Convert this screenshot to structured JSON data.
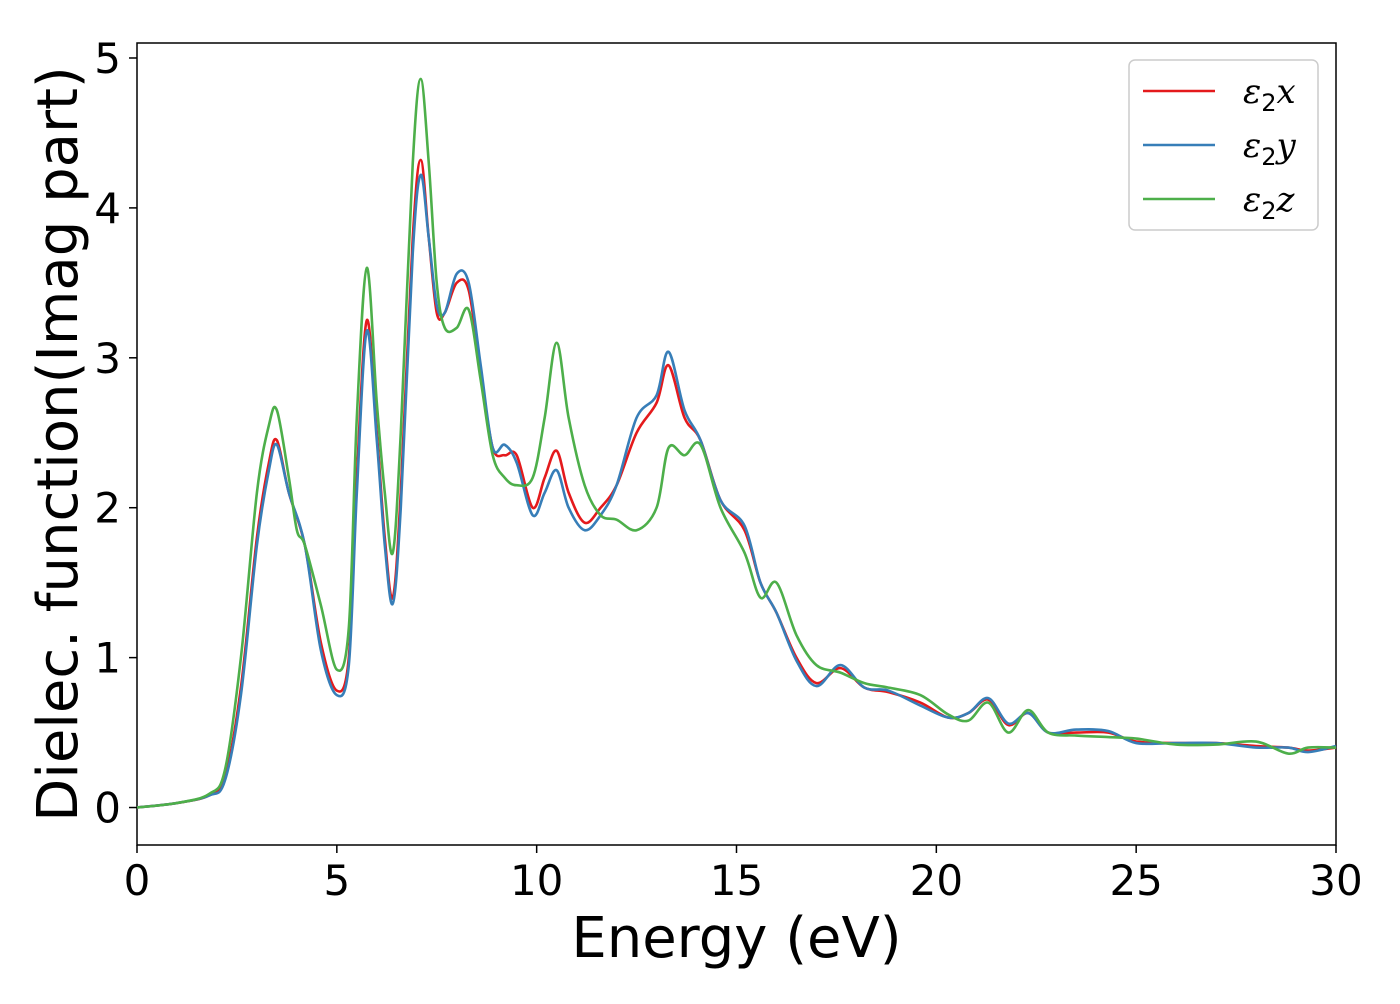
{
  "chart_data": {
    "type": "line",
    "xlabel": "Energy (eV)",
    "ylabel": "Dielec. function(Imag part)",
    "xlim": [
      0,
      30
    ],
    "ylim": [
      -0.25,
      5.1
    ],
    "xticks": [
      0,
      5,
      10,
      15,
      20,
      25,
      30
    ],
    "yticks": [
      0,
      1,
      2,
      3,
      4,
      5
    ],
    "grid": false,
    "legend_position": "top-right",
    "series": [
      {
        "name": "ε2x",
        "legend": {
          "base": "ε",
          "sub": "2",
          "tail": "x"
        },
        "color": "#e41a1c",
        "x": [
          0,
          1,
          1.8,
          2.2,
          2.6,
          3.0,
          3.3,
          3.5,
          3.8,
          4.2,
          4.6,
          5.0,
          5.3,
          5.5,
          5.75,
          6.0,
          6.2,
          6.4,
          6.6,
          6.9,
          7.1,
          7.3,
          7.5,
          7.7,
          8.0,
          8.3,
          8.6,
          8.9,
          9.2,
          9.5,
          9.9,
          10.2,
          10.5,
          10.8,
          11.2,
          11.6,
          12.0,
          12.5,
          13.0,
          13.3,
          13.7,
          14.1,
          14.6,
          15.2,
          15.6,
          16.0,
          16.5,
          17.0,
          17.6,
          18.2,
          18.8,
          19.6,
          20.3,
          20.8,
          21.3,
          21.8,
          22.3,
          22.8,
          23.5,
          24.3,
          25.0,
          26.0,
          27.0,
          28.0,
          28.8,
          29.3,
          30.0
        ],
        "values": [
          0,
          0.03,
          0.08,
          0.2,
          0.8,
          1.8,
          2.3,
          2.45,
          2.1,
          1.75,
          1.1,
          0.78,
          1.0,
          2.2,
          3.25,
          2.5,
          1.8,
          1.4,
          2.1,
          3.8,
          4.32,
          3.8,
          3.3,
          3.3,
          3.5,
          3.45,
          2.9,
          2.4,
          2.35,
          2.35,
          2.0,
          2.2,
          2.38,
          2.1,
          1.9,
          2.0,
          2.15,
          2.5,
          2.7,
          2.95,
          2.6,
          2.45,
          2.05,
          1.85,
          1.5,
          1.3,
          1.0,
          0.83,
          0.93,
          0.8,
          0.77,
          0.7,
          0.6,
          0.63,
          0.72,
          0.55,
          0.63,
          0.5,
          0.5,
          0.5,
          0.44,
          0.43,
          0.43,
          0.41,
          0.4,
          0.38,
          0.4
        ]
      },
      {
        "name": "ε2y",
        "legend": {
          "base": "ε",
          "sub": "2",
          "tail": "y"
        },
        "color": "#377eb8",
        "x": [
          0,
          1,
          1.8,
          2.2,
          2.6,
          3.0,
          3.3,
          3.5,
          3.8,
          4.2,
          4.6,
          5.0,
          5.3,
          5.5,
          5.75,
          6.0,
          6.2,
          6.4,
          6.6,
          6.9,
          7.1,
          7.3,
          7.5,
          7.7,
          8.0,
          8.3,
          8.6,
          8.9,
          9.2,
          9.5,
          9.9,
          10.2,
          10.5,
          10.8,
          11.2,
          11.6,
          12.0,
          12.5,
          13.0,
          13.3,
          13.7,
          14.1,
          14.6,
          15.2,
          15.6,
          16.0,
          16.5,
          17.0,
          17.6,
          18.2,
          18.8,
          19.6,
          20.3,
          20.8,
          21.3,
          21.8,
          22.3,
          22.8,
          23.5,
          24.3,
          25.0,
          26.0,
          27.0,
          28.0,
          28.8,
          29.3,
          30.0
        ],
        "values": [
          0,
          0.03,
          0.08,
          0.18,
          0.75,
          1.75,
          2.25,
          2.42,
          2.1,
          1.75,
          1.05,
          0.75,
          0.95,
          2.1,
          3.18,
          2.45,
          1.75,
          1.36,
          2.0,
          3.7,
          4.22,
          3.8,
          3.35,
          3.3,
          3.56,
          3.5,
          2.95,
          2.4,
          2.42,
          2.3,
          1.95,
          2.1,
          2.25,
          2.0,
          1.85,
          1.95,
          2.15,
          2.6,
          2.75,
          3.04,
          2.65,
          2.45,
          2.05,
          1.88,
          1.5,
          1.3,
          0.98,
          0.81,
          0.95,
          0.8,
          0.78,
          0.68,
          0.6,
          0.63,
          0.73,
          0.56,
          0.63,
          0.5,
          0.52,
          0.51,
          0.43,
          0.43,
          0.43,
          0.4,
          0.4,
          0.37,
          0.41
        ]
      },
      {
        "name": "ε2z",
        "legend": {
          "base": "ε",
          "sub": "2",
          "tail": "z"
        },
        "color": "#4daf4a",
        "x": [
          0,
          1,
          1.8,
          2.2,
          2.6,
          3.0,
          3.3,
          3.5,
          3.8,
          4.0,
          4.2,
          4.6,
          5.0,
          5.3,
          5.5,
          5.75,
          6.0,
          6.2,
          6.4,
          6.6,
          6.9,
          7.1,
          7.3,
          7.5,
          7.7,
          8.0,
          8.3,
          8.6,
          8.9,
          9.2,
          9.5,
          9.9,
          10.2,
          10.5,
          10.8,
          11.2,
          11.6,
          12.0,
          12.5,
          13.0,
          13.3,
          13.7,
          14.1,
          14.6,
          15.2,
          15.6,
          16.0,
          16.5,
          17.0,
          17.6,
          18.2,
          18.8,
          19.6,
          20.3,
          20.8,
          21.3,
          21.8,
          22.3,
          22.8,
          23.5,
          24.3,
          25.0,
          26.0,
          27.0,
          28.0,
          28.8,
          29.3,
          30.0
        ],
        "values": [
          0,
          0.03,
          0.09,
          0.25,
          1.0,
          2.1,
          2.55,
          2.65,
          2.2,
          1.85,
          1.75,
          1.35,
          0.92,
          1.2,
          2.6,
          3.6,
          2.7,
          2.1,
          1.7,
          2.5,
          4.3,
          4.86,
          4.3,
          3.5,
          3.2,
          3.2,
          3.32,
          2.85,
          2.35,
          2.2,
          2.15,
          2.2,
          2.6,
          3.1,
          2.6,
          2.15,
          1.95,
          1.92,
          1.85,
          2.0,
          2.4,
          2.35,
          2.42,
          2.0,
          1.7,
          1.4,
          1.5,
          1.15,
          0.95,
          0.9,
          0.83,
          0.8,
          0.75,
          0.62,
          0.58,
          0.7,
          0.5,
          0.65,
          0.5,
          0.48,
          0.47,
          0.46,
          0.42,
          0.42,
          0.44,
          0.36,
          0.4,
          0.4
        ]
      }
    ]
  }
}
